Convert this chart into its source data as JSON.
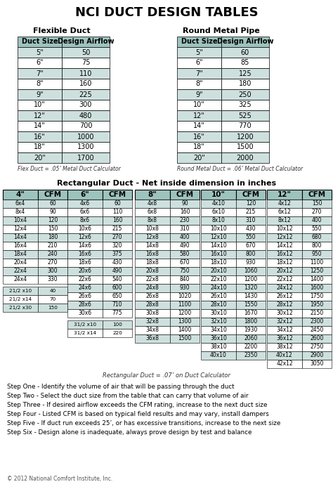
{
  "title": "NCI DUCT DESIGN TABLES",
  "bg_color": "#ffffff",
  "header_bg": "#9dc3be",
  "cell_bg_light": "#cde0dd",
  "border_color": "#000000",
  "flex_duct": {
    "label": "Flexible Duct",
    "headers": [
      "Duct Size",
      "Design Airflow"
    ],
    "rows": [
      [
        "5\"",
        "50"
      ],
      [
        "6\"",
        "75"
      ],
      [
        "7\"",
        "110"
      ],
      [
        "8\"",
        "160"
      ],
      [
        "9\"",
        "225"
      ],
      [
        "10\"",
        "300"
      ],
      [
        "12\"",
        "480"
      ],
      [
        "14\"",
        "700"
      ],
      [
        "16\"",
        "1000"
      ],
      [
        "18\"",
        "1300"
      ],
      [
        "20\"",
        "1700"
      ]
    ],
    "footnote": "Flex Duct = .05’ Metal Duct Calculator"
  },
  "round_metal": {
    "label": "Round Metal Pipe",
    "headers": [
      "Duct Size",
      "Design Airflow"
    ],
    "rows": [
      [
        "5\"",
        "60"
      ],
      [
        "6\"",
        "85"
      ],
      [
        "7\"",
        "125"
      ],
      [
        "8\"",
        "180"
      ],
      [
        "9\"",
        "250"
      ],
      [
        "10\"",
        "325"
      ],
      [
        "12\"",
        "525"
      ],
      [
        "14\"",
        "770"
      ],
      [
        "16\"",
        "1200"
      ],
      [
        "18\"",
        "1500"
      ],
      [
        "20\"",
        "2000"
      ]
    ],
    "footnote": "Round Metal Duct = .06’ Metal Duct Calculator"
  },
  "rect_title": "Rectangular Duct - Net inside dimension in inches",
  "rect_footnote": "Rectangular Duct = .07’ on Duct Calculator",
  "rect_cols": [
    {
      "header": "4\"",
      "rows": [
        [
          "6x4",
          "60"
        ],
        [
          "8x4",
          "90"
        ],
        [
          "10x4",
          "120"
        ],
        [
          "12x4",
          "150"
        ],
        [
          "14x4",
          "180"
        ],
        [
          "16x4",
          "210"
        ],
        [
          "18x4",
          "240"
        ],
        [
          "20x4",
          "270"
        ],
        [
          "22x4",
          "300"
        ],
        [
          "24x4",
          "330"
        ]
      ],
      "extra": [
        [
          "21/2 x10",
          "40"
        ],
        [
          "21/2 x14",
          "70"
        ],
        [
          "21/2 x30",
          "150"
        ]
      ]
    },
    {
      "header": "6\"",
      "rows": [
        [
          "4x6",
          "60"
        ],
        [
          "6x6",
          "110"
        ],
        [
          "8x6",
          "160"
        ],
        [
          "10x6",
          "215"
        ],
        [
          "12x6",
          "270"
        ],
        [
          "14x6",
          "320"
        ],
        [
          "16x6",
          "375"
        ],
        [
          "18x6",
          "430"
        ],
        [
          "20x6",
          "490"
        ],
        [
          "22x6",
          "540"
        ],
        [
          "24x6",
          "600"
        ],
        [
          "26x6",
          "650"
        ],
        [
          "28x6",
          "710"
        ],
        [
          "30x6",
          "775"
        ]
      ],
      "extra": [
        [
          "31/2 x10",
          "100"
        ],
        [
          "31/2 x14",
          "220"
        ]
      ]
    },
    {
      "header": "8\"",
      "rows": [
        [
          "4x8",
          "90"
        ],
        [
          "6x8",
          "160"
        ],
        [
          "8x8",
          "230"
        ],
        [
          "10x8",
          "310"
        ],
        [
          "12x8",
          "400"
        ],
        [
          "14x8",
          "490"
        ],
        [
          "16x8",
          "580"
        ],
        [
          "18x8",
          "670"
        ],
        [
          "20x8",
          "750"
        ],
        [
          "22x8",
          "840"
        ],
        [
          "24x8",
          "930"
        ],
        [
          "26x8",
          "1020"
        ],
        [
          "28x8",
          "1100"
        ],
        [
          "30x8",
          "1200"
        ],
        [
          "32x8",
          "1300"
        ],
        [
          "34x8",
          "1400"
        ],
        [
          "36x8",
          "1500"
        ]
      ],
      "extra": []
    },
    {
      "header": "10\"",
      "rows": [
        [
          "4x10",
          "120"
        ],
        [
          "6x10",
          "215"
        ],
        [
          "8x10",
          "310"
        ],
        [
          "10x10",
          "430"
        ],
        [
          "12x10",
          "550"
        ],
        [
          "14x10",
          "670"
        ],
        [
          "16x10",
          "800"
        ],
        [
          "18x10",
          "930"
        ],
        [
          "20x10",
          "1060"
        ],
        [
          "22x10",
          "1200"
        ],
        [
          "24x10",
          "1320"
        ],
        [
          "26x10",
          "1430"
        ],
        [
          "28x10",
          "1550"
        ],
        [
          "30x10",
          "1670"
        ],
        [
          "32x10",
          "1800"
        ],
        [
          "34x10",
          "1930"
        ],
        [
          "36x10",
          "2060"
        ],
        [
          "38x10",
          "2200"
        ],
        [
          "40x10",
          "2350"
        ]
      ],
      "extra": []
    },
    {
      "header": "12\"",
      "rows": [
        [
          "4x12",
          "150"
        ],
        [
          "6x12",
          "270"
        ],
        [
          "8x12",
          "400"
        ],
        [
          "10x12",
          "550"
        ],
        [
          "12x12",
          "680"
        ],
        [
          "14x12",
          "800"
        ],
        [
          "16x12",
          "950"
        ],
        [
          "18x12",
          "1100"
        ],
        [
          "20x12",
          "1250"
        ],
        [
          "22x12",
          "1400"
        ],
        [
          "24x12",
          "1600"
        ],
        [
          "26x12",
          "1750"
        ],
        [
          "28x12",
          "1950"
        ],
        [
          "30x12",
          "2150"
        ],
        [
          "32x12",
          "2300"
        ],
        [
          "34x12",
          "2450"
        ],
        [
          "36x12",
          "2600"
        ],
        [
          "38x12",
          "2750"
        ],
        [
          "40x12",
          "2900"
        ],
        [
          "42x12",
          "3050"
        ]
      ],
      "extra": []
    }
  ],
  "steps": [
    "Step One - Identify the volume of air that will be passing through the duct",
    "Step Two - Select the duct size from the table that can carry that volume of air",
    "Step Three - If desired airflow exceeds the CFM rating, increase to the next duct size",
    "Step Four - Listed CFM is based on typical field results and may vary, install dampers",
    "Step Five - If duct run exceeds 25’, or has excessive transitions, increase to the next size",
    "Step Six - Design alone is inadequate, always prove design by test and balance"
  ],
  "copyright": "© 2012 National Comfort Institute, Inc."
}
